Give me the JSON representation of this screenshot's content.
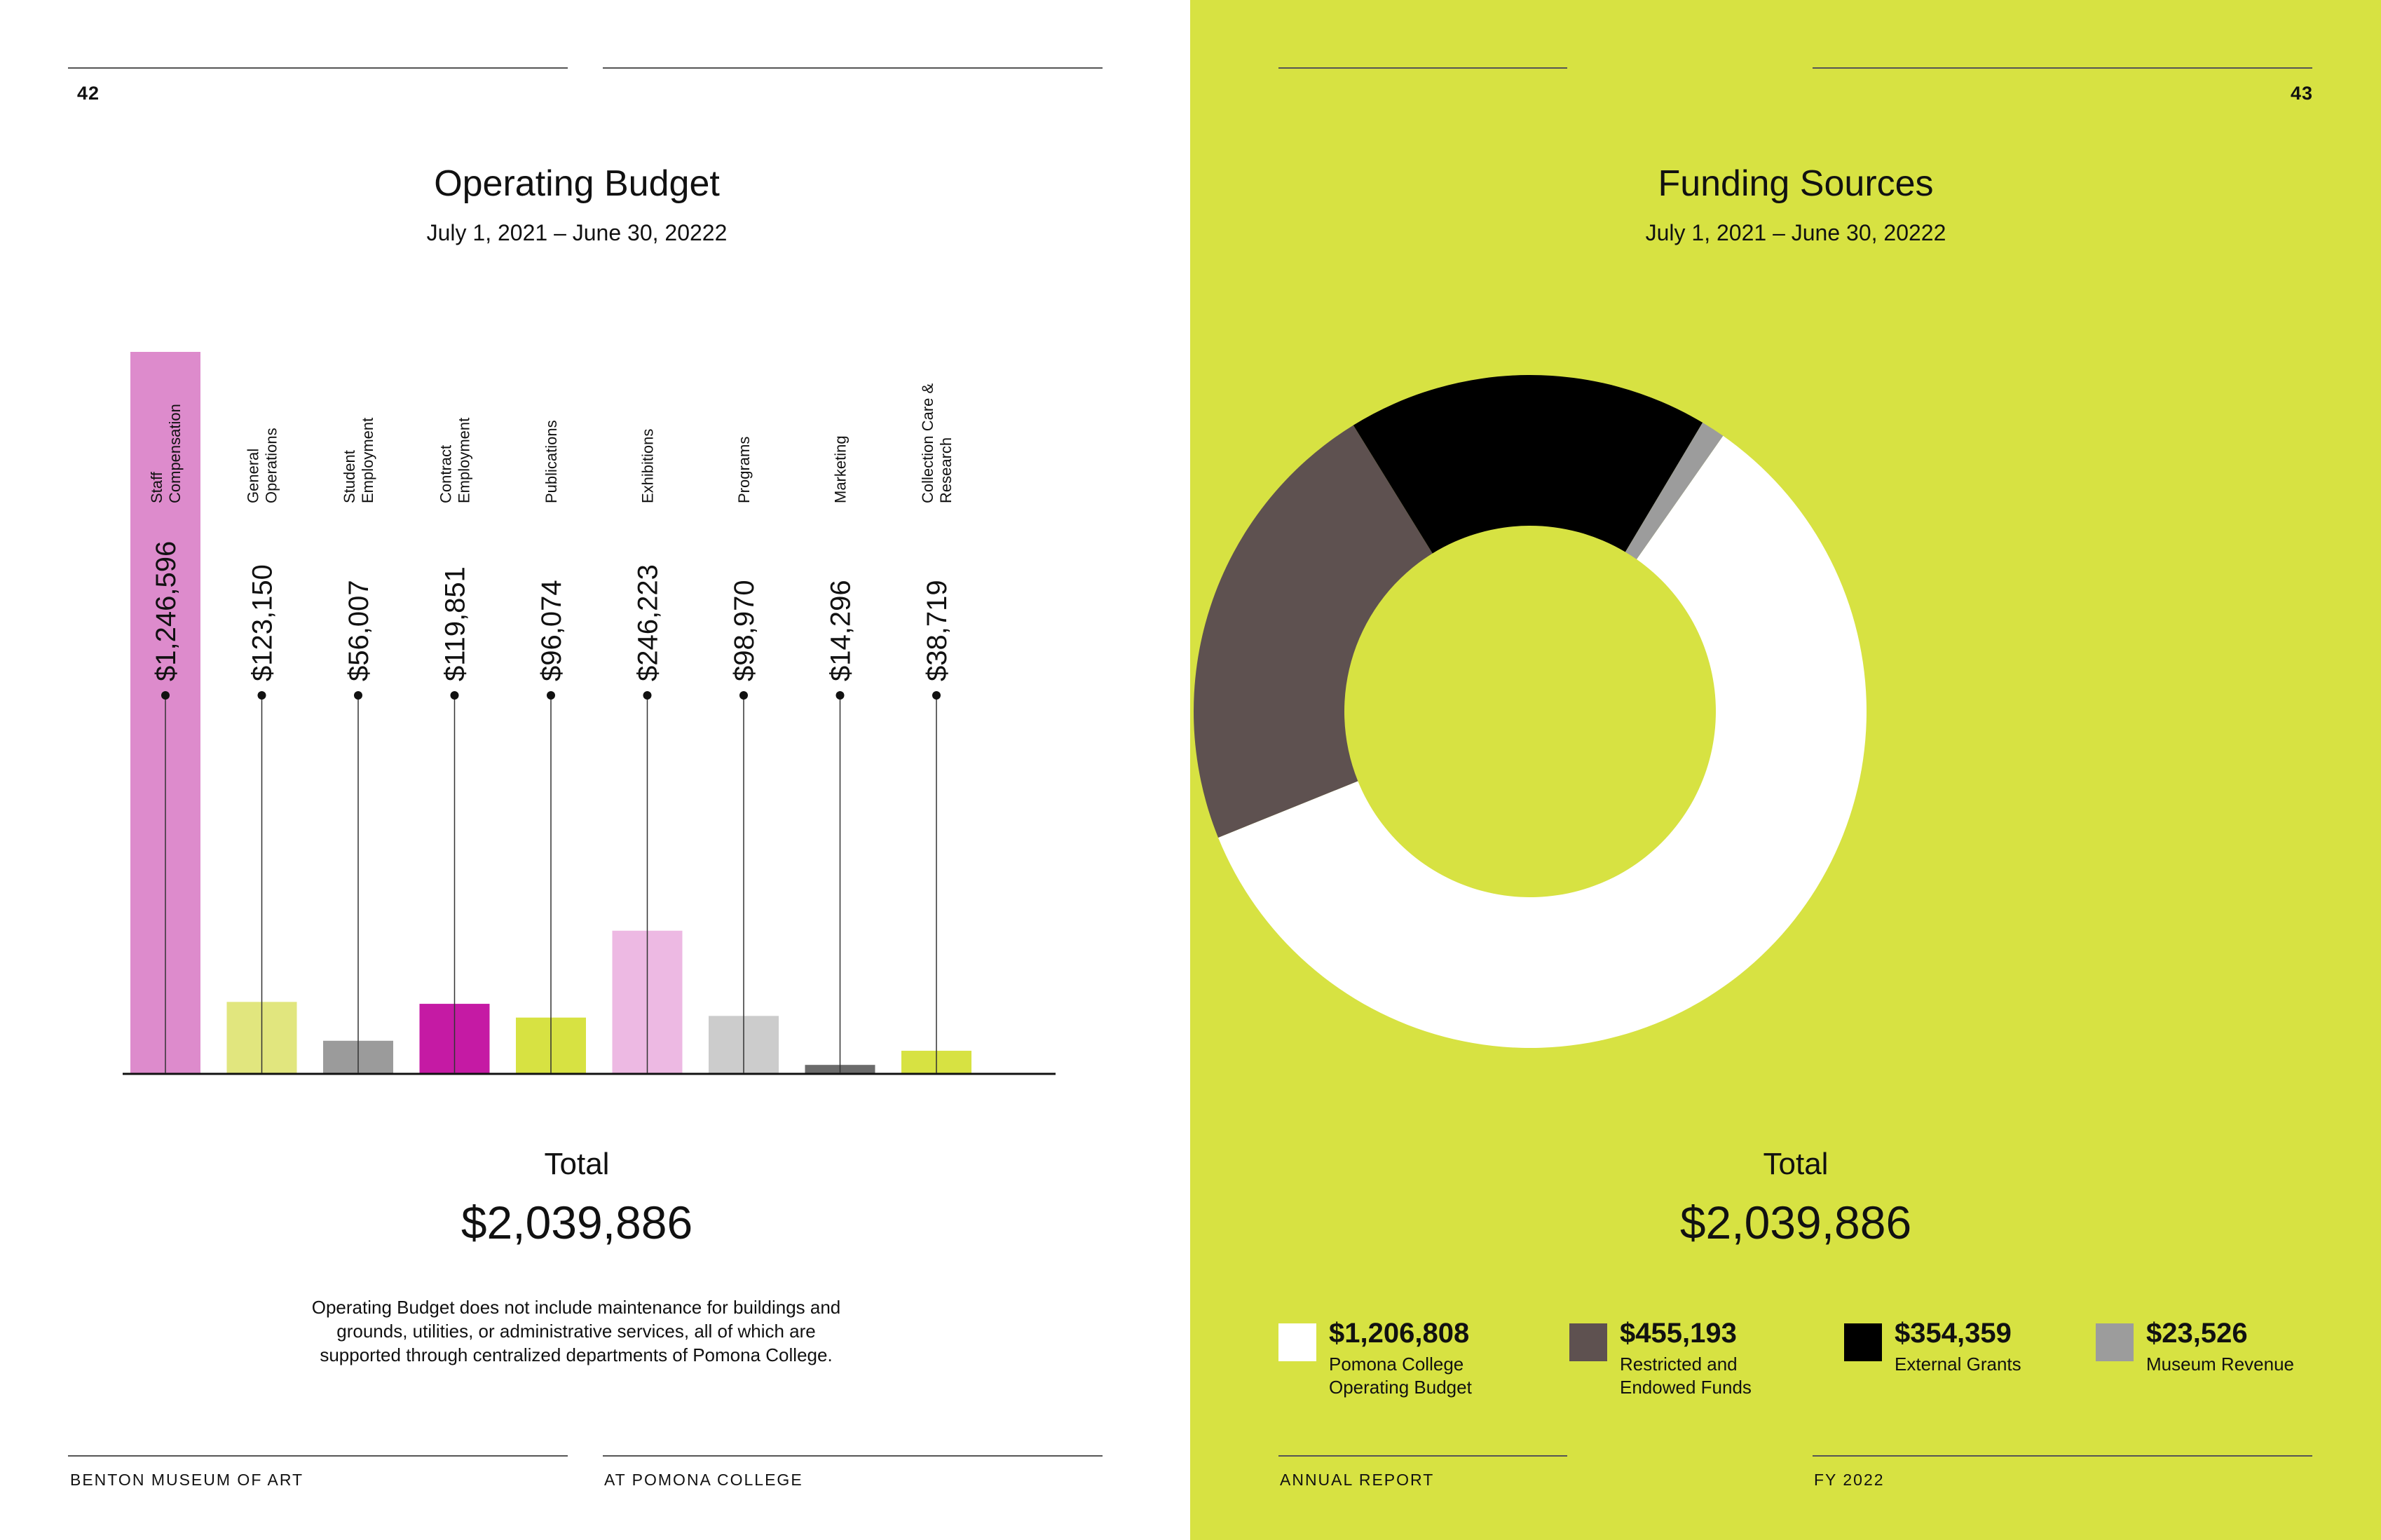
{
  "left": {
    "page_number": "42",
    "footer_left": "BENTON MUSEUM OF ART",
    "footer_right": "AT POMONA COLLEGE",
    "note_lines": [
      "Operating Budget does not include maintenance for buildings and",
      "grounds, utilities, or administrative services, all of which are",
      "supported through centralized departments of Pomona College."
    ]
  },
  "right": {
    "page_number": "43",
    "footer_left": "ANNUAL REPORT",
    "footer_right": "FY 2022"
  },
  "chart_data": [
    {
      "type": "bar",
      "title": "Operating Budget",
      "subtitle": "July 1, 2021 – June 30, 20222",
      "total_label": "Total",
      "total_value": "$2,039,886",
      "categories": [
        [
          "Staff",
          "Compensation"
        ],
        [
          "General",
          "Operations"
        ],
        [
          "Student",
          "Employment"
        ],
        [
          "Contract",
          "Employment"
        ],
        [
          "Publications"
        ],
        [
          "Exhibitions"
        ],
        [
          "Programs"
        ],
        [
          "Marketing"
        ],
        [
          "Collection Care &",
          "Research"
        ]
      ],
      "values": [
        1246596,
        123150,
        56007,
        119851,
        96074,
        246223,
        98970,
        14296,
        38719
      ],
      "value_labels": [
        "$1,246,596",
        "$123,150",
        "$56,007",
        "$119,851",
        "$96,074",
        "$246,223",
        "$98,970",
        "$14,296",
        "$38,719"
      ],
      "colors": [
        "#dd8bcc",
        "#e1e67e",
        "#9b9b9b",
        "#c51aa4",
        "#d7e242",
        "#edb9e3",
        "#cccccc",
        "#6b6b6b",
        "#d7e242"
      ],
      "ylim": [
        0,
        1246596
      ]
    },
    {
      "type": "pie",
      "title": "Funding Sources",
      "subtitle": "July 1, 2021 – June 30, 20222",
      "total_label": "Total",
      "total_value": "$2,039,886",
      "slices": [
        {
          "value": 1206808,
          "value_label": "$1,206,808",
          "label": [
            "Pomona College",
            "Operating Budget"
          ],
          "color": "#ffffff"
        },
        {
          "value": 455193,
          "value_label": "$455,193",
          "label": [
            "Restricted and",
            "Endowed Funds"
          ],
          "color": "#5e5150"
        },
        {
          "value": 354359,
          "value_label": "$354,359",
          "label": [
            "External Grants"
          ],
          "color": "#000000"
        },
        {
          "value": 23526,
          "value_label": "$23,526",
          "label": [
            "Museum Revenue"
          ],
          "color": "#9c9c9c"
        }
      ],
      "legend_position": "bottom"
    }
  ]
}
